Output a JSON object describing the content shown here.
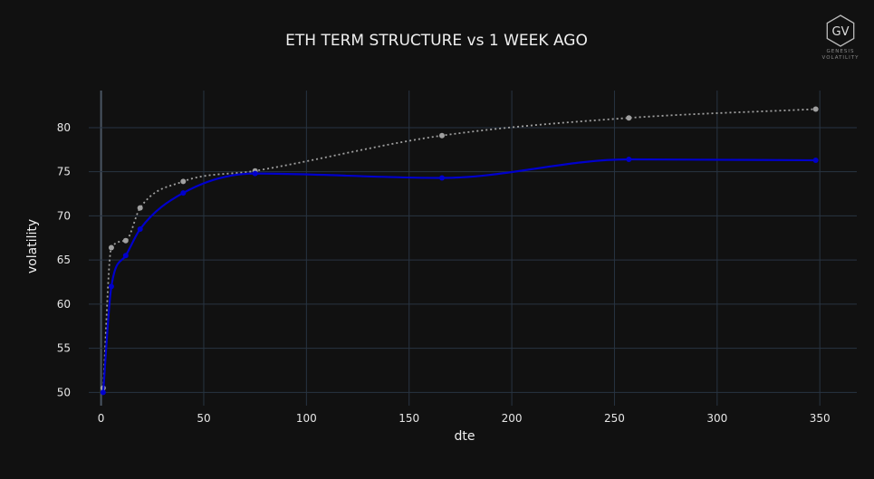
{
  "logo": {
    "monogram": "GV",
    "line1": "GENESIS",
    "line2": "VOLATILITY"
  },
  "chart_data": {
    "type": "line",
    "title": "ETH TERM STRUCTURE vs 1 WEEK AGO",
    "xlabel": "dte",
    "ylabel": "volatility",
    "xlim": [
      -6,
      368
    ],
    "ylim": [
      48.5,
      84.2
    ],
    "x_ticks": [
      0,
      50,
      100,
      150,
      200,
      250,
      300,
      350
    ],
    "y_ticks": [
      50,
      55,
      60,
      65,
      70,
      75,
      80
    ],
    "grid": true,
    "series": [
      {
        "color": "#0000cc",
        "style": "solid",
        "points": [
          [
            1,
            50.0
          ],
          [
            5,
            62.0
          ],
          [
            12,
            65.5
          ],
          [
            19,
            68.5
          ],
          [
            40,
            72.6
          ],
          [
            75,
            74.8
          ],
          [
            166,
            74.3
          ],
          [
            257,
            76.4
          ],
          [
            348,
            76.3
          ]
        ]
      },
      {
        "color": "#a0a0a0",
        "style": "dotted",
        "points": [
          [
            1,
            50.5
          ],
          [
            5,
            66.4
          ],
          [
            12,
            67.2
          ],
          [
            19,
            70.9
          ],
          [
            40,
            73.9
          ],
          [
            75,
            75.1
          ],
          [
            166,
            79.1
          ],
          [
            257,
            81.1
          ],
          [
            348,
            82.1
          ]
        ]
      }
    ]
  }
}
